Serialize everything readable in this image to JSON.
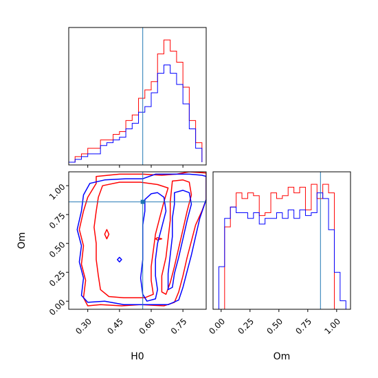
{
  "chart_data": [
    {
      "type": "histogram",
      "panel": "H0 marginal",
      "x": [
        0.21,
        0.24,
        0.27,
        0.3,
        0.33,
        0.36,
        0.39,
        0.42,
        0.45,
        0.48,
        0.51,
        0.54,
        0.57,
        0.6,
        0.63,
        0.66,
        0.69,
        0.72,
        0.75,
        0.78,
        0.81,
        0.84
      ],
      "xlim": [
        0.21,
        0.86
      ],
      "xticks": [
        "0.30",
        "0.45",
        "0.60",
        "0.75"
      ],
      "reference_line": 0.56,
      "series": [
        {
          "color": "#ff0000",
          "values": [
            1,
            3,
            4,
            6,
            6,
            9,
            9,
            11,
            12,
            16,
            18,
            24,
            27,
            30,
            40,
            45,
            41,
            37,
            28,
            16,
            8,
            1
          ]
        },
        {
          "color": "#0000ff",
          "values": [
            1,
            2,
            3,
            4,
            4,
            7,
            8,
            9,
            10,
            13,
            15,
            19,
            21,
            26,
            33,
            36,
            33,
            29,
            22,
            13,
            6,
            1
          ]
        }
      ]
    },
    {
      "type": "histogram",
      "panel": "Om marginal",
      "x": [
        -0.07,
        -0.02,
        0.03,
        0.08,
        0.13,
        0.18,
        0.23,
        0.28,
        0.33,
        0.38,
        0.43,
        0.48,
        0.53,
        0.58,
        0.63,
        0.68,
        0.73,
        0.78,
        0.83,
        0.88,
        0.93,
        0.98,
        1.03,
        1.08,
        1.12
      ],
      "xlim": [
        -0.07,
        1.12
      ],
      "xticks": [
        "0.00",
        "0.25",
        "0.50",
        "0.75",
        "1.00"
      ],
      "reference_line": 0.86,
      "series": [
        {
          "color": "#ff0000",
          "values": [
            0,
            0,
            29,
            36,
            41,
            39,
            41,
            40,
            33,
            34,
            41,
            39,
            40,
            43,
            41,
            43,
            35,
            44,
            39,
            44,
            41,
            0,
            0,
            0
          ]
        },
        {
          "color": "#0000ff",
          "values": [
            0,
            15,
            32,
            36,
            34,
            34,
            32,
            34,
            30,
            32,
            32,
            34,
            32,
            35,
            32,
            35,
            33,
            34,
            41,
            39,
            28,
            13,
            3,
            0
          ]
        }
      ]
    },
    {
      "type": "contour",
      "panel": "H0 vs Om joint",
      "xlabel": "H0",
      "ylabel": "Om",
      "xlim": [
        0.21,
        0.86
      ],
      "ylim": [
        -0.07,
        1.12
      ],
      "xticks": [
        "0.30",
        "0.45",
        "0.60",
        "0.75"
      ],
      "yticks": [
        "0.00",
        "0.25",
        "0.50",
        "0.75",
        "1.00"
      ],
      "reference_point": {
        "x": 0.56,
        "y": 0.86
      },
      "series": [
        {
          "color": "#ff0000",
          "contours": [
            [
              [
                0.34,
                1.08
              ],
              [
                0.45,
                1.1
              ],
              [
                0.56,
                1.1
              ],
              [
                0.65,
                1.09
              ],
              [
                0.72,
                1.1
              ],
              [
                0.78,
                1.12
              ],
              [
                0.86,
                1.11
              ],
              [
                0.86,
                0.88
              ],
              [
                0.84,
                0.78
              ],
              [
                0.81,
                0.66
              ],
              [
                0.79,
                0.52
              ],
              [
                0.77,
                0.38
              ],
              [
                0.75,
                0.22
              ],
              [
                0.73,
                0.08
              ],
              [
                0.71,
                -0.01
              ],
              [
                0.66,
                -0.04
              ],
              [
                0.55,
                -0.03
              ],
              [
                0.46,
                -0.04
              ],
              [
                0.36,
                -0.03
              ],
              [
                0.3,
                -0.04
              ],
              [
                0.28,
                0.03
              ],
              [
                0.29,
                0.18
              ],
              [
                0.27,
                0.32
              ],
              [
                0.28,
                0.48
              ],
              [
                0.26,
                0.62
              ],
              [
                0.28,
                0.78
              ],
              [
                0.3,
                0.9
              ],
              [
                0.34,
                1.02
              ],
              [
                0.34,
                1.08
              ]
            ],
            [
              [
                0.37,
                1.0
              ],
              [
                0.45,
                1.03
              ],
              [
                0.55,
                1.03
              ],
              [
                0.63,
                1.01
              ],
              [
                0.68,
                0.98
              ],
              [
                0.66,
                0.86
              ],
              [
                0.64,
                0.72
              ],
              [
                0.62,
                0.58
              ],
              [
                0.61,
                0.44
              ],
              [
                0.6,
                0.3
              ],
              [
                0.6,
                0.18
              ],
              [
                0.61,
                0.06
              ],
              [
                0.57,
                0.03
              ],
              [
                0.47,
                0.03
              ],
              [
                0.4,
                0.04
              ],
              [
                0.36,
                0.1
              ],
              [
                0.35,
                0.22
              ],
              [
                0.34,
                0.36
              ],
              [
                0.34,
                0.5
              ],
              [
                0.33,
                0.64
              ],
              [
                0.34,
                0.78
              ],
              [
                0.35,
                0.9
              ],
              [
                0.37,
                1.0
              ]
            ],
            [
              [
                0.7,
                1.04
              ],
              [
                0.75,
                1.05
              ],
              [
                0.78,
                1.03
              ],
              [
                0.79,
                0.92
              ],
              [
                0.77,
                0.78
              ],
              [
                0.75,
                0.62
              ],
              [
                0.73,
                0.46
              ],
              [
                0.71,
                0.3
              ],
              [
                0.69,
                0.16
              ],
              [
                0.67,
                0.06
              ],
              [
                0.65,
                0.08
              ],
              [
                0.65,
                0.22
              ],
              [
                0.67,
                0.38
              ],
              [
                0.68,
                0.54
              ],
              [
                0.69,
                0.7
              ],
              [
                0.69,
                0.86
              ],
              [
                0.7,
                1.04
              ]
            ],
            [
              [
                0.62,
                0.54
              ],
              [
                0.63,
                0.55
              ],
              [
                0.65,
                0.54
              ],
              [
                0.63,
                0.53
              ],
              [
                0.62,
                0.54
              ]
            ],
            [
              [
                0.38,
                0.58
              ],
              [
                0.39,
                0.62
              ],
              [
                0.4,
                0.58
              ],
              [
                0.39,
                0.54
              ],
              [
                0.38,
                0.58
              ]
            ]
          ]
        },
        {
          "color": "#0000ff",
          "contours": [
            [
              [
                0.62,
                1.1
              ],
              [
                0.7,
                1.1
              ],
              [
                0.78,
                1.1
              ],
              [
                0.84,
                1.09
              ],
              [
                0.86,
                1.08
              ],
              [
                0.86,
                0.88
              ],
              [
                0.83,
                0.72
              ],
              [
                0.81,
                0.56
              ],
              [
                0.79,
                0.4
              ],
              [
                0.77,
                0.26
              ],
              [
                0.75,
                0.12
              ],
              [
                0.73,
                0.01
              ],
              [
                0.68,
                -0.03
              ],
              [
                0.58,
                -0.03
              ],
              [
                0.47,
                -0.03
              ],
              [
                0.38,
                0.0
              ],
              [
                0.3,
                -0.01
              ],
              [
                0.27,
                0.05
              ],
              [
                0.28,
                0.2
              ],
              [
                0.26,
                0.34
              ],
              [
                0.27,
                0.48
              ],
              [
                0.25,
                0.62
              ],
              [
                0.27,
                0.78
              ],
              [
                0.28,
                0.92
              ],
              [
                0.31,
                1.02
              ],
              [
                0.38,
                1.05
              ],
              [
                0.48,
                1.06
              ],
              [
                0.56,
                1.06
              ],
              [
                0.62,
                1.1
              ]
            ],
            [
              [
                0.57,
                0.88
              ],
              [
                0.6,
                0.93
              ],
              [
                0.63,
                0.94
              ],
              [
                0.66,
                0.9
              ],
              [
                0.67,
                0.78
              ],
              [
                0.65,
                0.64
              ],
              [
                0.63,
                0.5
              ],
              [
                0.62,
                0.36
              ],
              [
                0.62,
                0.22
              ],
              [
                0.63,
                0.1
              ],
              [
                0.62,
                0.02
              ],
              [
                0.58,
                0.0
              ],
              [
                0.56,
                0.06
              ],
              [
                0.55,
                0.2
              ],
              [
                0.56,
                0.36
              ],
              [
                0.56,
                0.52
              ],
              [
                0.56,
                0.66
              ],
              [
                0.57,
                0.78
              ],
              [
                0.57,
                0.88
              ]
            ],
            [
              [
                0.71,
                0.94
              ],
              [
                0.75,
                0.96
              ],
              [
                0.78,
                0.94
              ],
              [
                0.79,
                0.84
              ],
              [
                0.77,
                0.7
              ],
              [
                0.75,
                0.54
              ],
              [
                0.73,
                0.38
              ],
              [
                0.71,
                0.24
              ],
              [
                0.7,
                0.12
              ],
              [
                0.68,
                0.1
              ],
              [
                0.68,
                0.24
              ],
              [
                0.69,
                0.4
              ],
              [
                0.7,
                0.56
              ],
              [
                0.7,
                0.72
              ],
              [
                0.71,
                0.84
              ],
              [
                0.71,
                0.94
              ]
            ],
            [
              [
                0.44,
                0.36
              ],
              [
                0.45,
                0.38
              ],
              [
                0.46,
                0.36
              ],
              [
                0.45,
                0.34
              ],
              [
                0.44,
                0.36
              ]
            ]
          ]
        }
      ]
    }
  ]
}
